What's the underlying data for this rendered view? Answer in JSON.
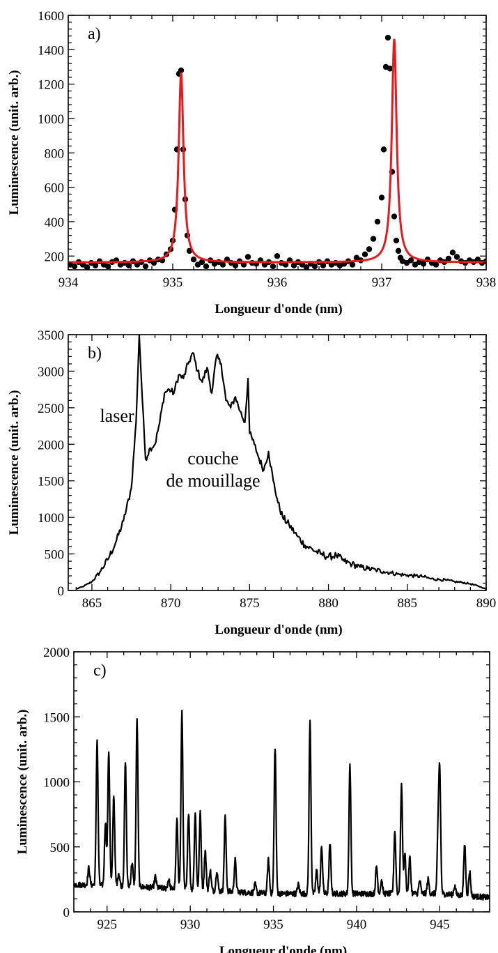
{
  "chart_data": [
    {
      "panel_label": "a)",
      "type": "scatter",
      "xlabel": "Longueur d'onde (nm)",
      "ylabel": "Luminescence (unit. arb.)",
      "xlim": [
        934,
        938
      ],
      "ylim": [
        120,
        1600
      ],
      "xticks": [
        934,
        935,
        936,
        937,
        938
      ],
      "yticks": [
        200,
        400,
        600,
        800,
        1000,
        1200,
        1400,
        1600
      ],
      "series": [
        {
          "kind": "points",
          "color": "#000000",
          "x": [
            934.02,
            934.06,
            934.1,
            934.14,
            934.18,
            934.22,
            934.26,
            934.3,
            934.34,
            934.38,
            934.42,
            934.46,
            934.5,
            934.54,
            934.58,
            934.62,
            934.66,
            934.7,
            934.74,
            934.78,
            934.82,
            934.86,
            934.9,
            934.94,
            934.98,
            935.0,
            935.02,
            935.04,
            935.06,
            935.08,
            935.1,
            935.12,
            935.14,
            935.16,
            935.2,
            935.24,
            935.28,
            935.32,
            935.36,
            935.4,
            935.44,
            935.48,
            935.52,
            935.56,
            935.6,
            935.64,
            935.68,
            935.72,
            935.76,
            935.8,
            935.84,
            935.88,
            935.92,
            935.96,
            936.0,
            936.04,
            936.08,
            936.12,
            936.16,
            936.2,
            936.24,
            936.28,
            936.32,
            936.36,
            936.4,
            936.44,
            936.48,
            936.52,
            936.56,
            936.6,
            936.64,
            936.68,
            936.72,
            936.76,
            936.8,
            936.84,
            936.88,
            936.92,
            936.96,
            937.0,
            937.02,
            937.04,
            937.06,
            937.08,
            937.1,
            937.12,
            937.14,
            937.16,
            937.18,
            937.2,
            937.24,
            937.28,
            937.32,
            937.36,
            937.4,
            937.44,
            937.48,
            937.52,
            937.56,
            937.6,
            937.64,
            937.68,
            937.72,
            937.76,
            937.8,
            937.84,
            937.88,
            937.92,
            937.96,
            938.0
          ],
          "y": [
            150,
            140,
            165,
            150,
            135,
            160,
            145,
            170,
            150,
            140,
            165,
            175,
            150,
            160,
            145,
            170,
            150,
            165,
            140,
            175,
            160,
            180,
            175,
            210,
            240,
            290,
            470,
            820,
            1260,
            1280,
            820,
            530,
            320,
            230,
            180,
            150,
            165,
            140,
            175,
            155,
            165,
            150,
            180,
            160,
            145,
            170,
            150,
            195,
            160,
            155,
            175,
            150,
            165,
            140,
            200,
            160,
            150,
            175,
            145,
            165,
            150,
            135,
            155,
            140,
            165,
            145,
            170,
            150,
            160,
            145,
            155,
            170,
            150,
            190,
            175,
            210,
            240,
            300,
            400,
            540,
            820,
            1300,
            1470,
            1290,
            690,
            430,
            290,
            230,
            190,
            170,
            160,
            175,
            150,
            165,
            155,
            180,
            160,
            150,
            175,
            165,
            185,
            220,
            195,
            170,
            160,
            175,
            165,
            180,
            160,
            170
          ]
        },
        {
          "kind": "fit",
          "color": "#e8191d",
          "name": "",
          "peaks": [
            {
              "center": 935.08,
              "amplitude": 1105,
              "hwhm": 0.028
            },
            {
              "center": 937.12,
              "amplitude": 1300,
              "hwhm": 0.028
            }
          ],
          "baseline": 163
        }
      ]
    },
    {
      "panel_label": "b)",
      "type": "line",
      "xlabel": "Longueur d'onde (nm)",
      "ylabel": "Luminescence (unit. arb.)",
      "xlim": [
        863.5,
        890
      ],
      "ylim": [
        0,
        3500
      ],
      "xticks": [
        865,
        870,
        875,
        880,
        885,
        890
      ],
      "yticks": [
        0,
        500,
        1000,
        1500,
        2000,
        2500,
        3000,
        3500
      ],
      "annotations": [
        "laser",
        "couche",
        "de mouillage"
      ],
      "series": [
        {
          "color": "#000000",
          "x": [
            864.0,
            864.5,
            865.0,
            865.5,
            866.0,
            866.5,
            867.0,
            867.5,
            867.8,
            868.0,
            868.2,
            868.4,
            868.7,
            869.0,
            869.3,
            869.6,
            869.9,
            870.2,
            870.5,
            870.8,
            871.1,
            871.4,
            871.7,
            872.0,
            872.3,
            872.6,
            872.9,
            873.2,
            873.5,
            873.8,
            874.1,
            874.4,
            874.7,
            874.9,
            875.0,
            875.3,
            875.6,
            875.9,
            876.2,
            876.5,
            876.8,
            877.1,
            877.5,
            878.0,
            878.5,
            879.0,
            879.5,
            880.0,
            880.5,
            881.0,
            881.5,
            882.0,
            882.5,
            883.0,
            883.5,
            884.0,
            884.5,
            885.0,
            885.5,
            886.0,
            886.5,
            887.0,
            887.5,
            888.0,
            888.5,
            889.0,
            889.5,
            890.0
          ],
          "y": [
            20,
            60,
            120,
            250,
            420,
            650,
            950,
            1400,
            2300,
            3500,
            2600,
            1800,
            1950,
            2000,
            2300,
            2700,
            2750,
            2700,
            2950,
            2900,
            3100,
            3250,
            3000,
            2850,
            3050,
            2700,
            3200,
            3100,
            2600,
            2500,
            2650,
            2450,
            2300,
            2900,
            2150,
            2000,
            1800,
            1650,
            1900,
            1500,
            1200,
            1000,
            900,
            750,
            620,
            560,
            500,
            460,
            480,
            400,
            360,
            320,
            300,
            280,
            260,
            240,
            220,
            210,
            200,
            190,
            160,
            150,
            140,
            120,
            110,
            90,
            60,
            20
          ],
          "noise_amplitude": 50
        }
      ]
    },
    {
      "panel_label": "c)",
      "type": "line",
      "xlabel": "Longueur d'onde (nm)",
      "ylabel": "Luminescence (unit. arb.)",
      "xlim": [
        923,
        948
      ],
      "ylim": [
        0,
        2000
      ],
      "xticks": [
        925,
        930,
        935,
        940,
        945
      ],
      "yticks": [
        0,
        500,
        1000,
        1500,
        2000
      ],
      "series": [
        {
          "color": "#000000",
          "baseline": {
            "x": [
              923,
              926,
              930,
              935,
              940,
              945,
              948
            ],
            "y": [
              210,
              200,
              170,
              140,
              140,
              140,
              110
            ]
          },
          "noise_amplitude": 22,
          "peaks": {
            "x": [
              923.9,
              924.4,
              924.9,
              925.1,
              925.4,
              925.7,
              926.1,
              926.5,
              926.8,
              927.9,
              928.7,
              929.2,
              929.5,
              929.9,
              930.3,
              930.6,
              930.9,
              931.2,
              931.6,
              932.1,
              932.7,
              933.9,
              934.7,
              935.1,
              936.5,
              937.2,
              937.6,
              937.9,
              938.4,
              939.6,
              941.2,
              941.5,
              942.3,
              942.7,
              942.9,
              943.2,
              943.8,
              944.3,
              944.9,
              945.0,
              945.9,
              946.5,
              946.8
            ],
            "y": [
              340,
              1320,
              690,
              1240,
              900,
              300,
              1150,
              380,
              1480,
              270,
              250,
              700,
              1530,
              770,
              760,
              760,
              470,
              320,
              320,
              730,
              400,
              210,
              400,
              1270,
              210,
              1460,
              320,
              500,
              520,
              1130,
              350,
              240,
              620,
              980,
              450,
              420,
              240,
              250,
              570,
              1040,
              200,
              520,
              310
            ]
          },
          "peak_width": 0.08
        }
      ]
    }
  ]
}
